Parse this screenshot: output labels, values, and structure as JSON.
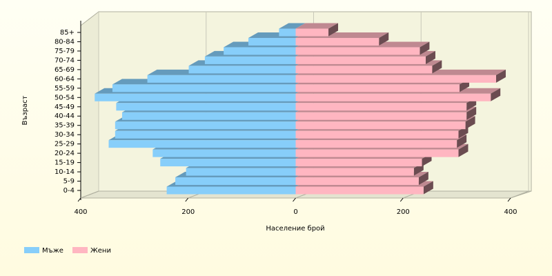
{
  "chart_data": {
    "type": "pyramid",
    "x_label": "Население брой",
    "y_label": "Възраст",
    "categories": [
      "0-4",
      "5-9",
      "10-14",
      "15-19",
      "20-24",
      "25-29",
      "30-34",
      "35-39",
      "40-44",
      "45-49",
      "50-54",
      "55-59",
      "60-64",
      "65-69",
      "70-74",
      "75-79",
      "80-84",
      "85+"
    ],
    "series": [
      {
        "name": "Мъже",
        "color": "#87cefa",
        "values": [
          -240,
          -224,
          -204,
          -252,
          -266,
          -348,
          -336,
          -336,
          -323,
          -334,
          -374,
          -341,
          -276,
          -199,
          -169,
          -134,
          -88,
          -31
        ]
      },
      {
        "name": "Жени",
        "color": "#ffb6c1",
        "values": [
          238,
          229,
          220,
          235,
          303,
          300,
          303,
          316,
          318,
          318,
          363,
          305,
          373,
          254,
          242,
          231,
          155,
          61
        ]
      }
    ],
    "xlim": [
      -400,
      400
    ],
    "xticks": [
      {
        "value": -400,
        "label": "400"
      },
      {
        "value": -200,
        "label": "200"
      },
      0,
      200,
      400
    ],
    "grid": true
  }
}
